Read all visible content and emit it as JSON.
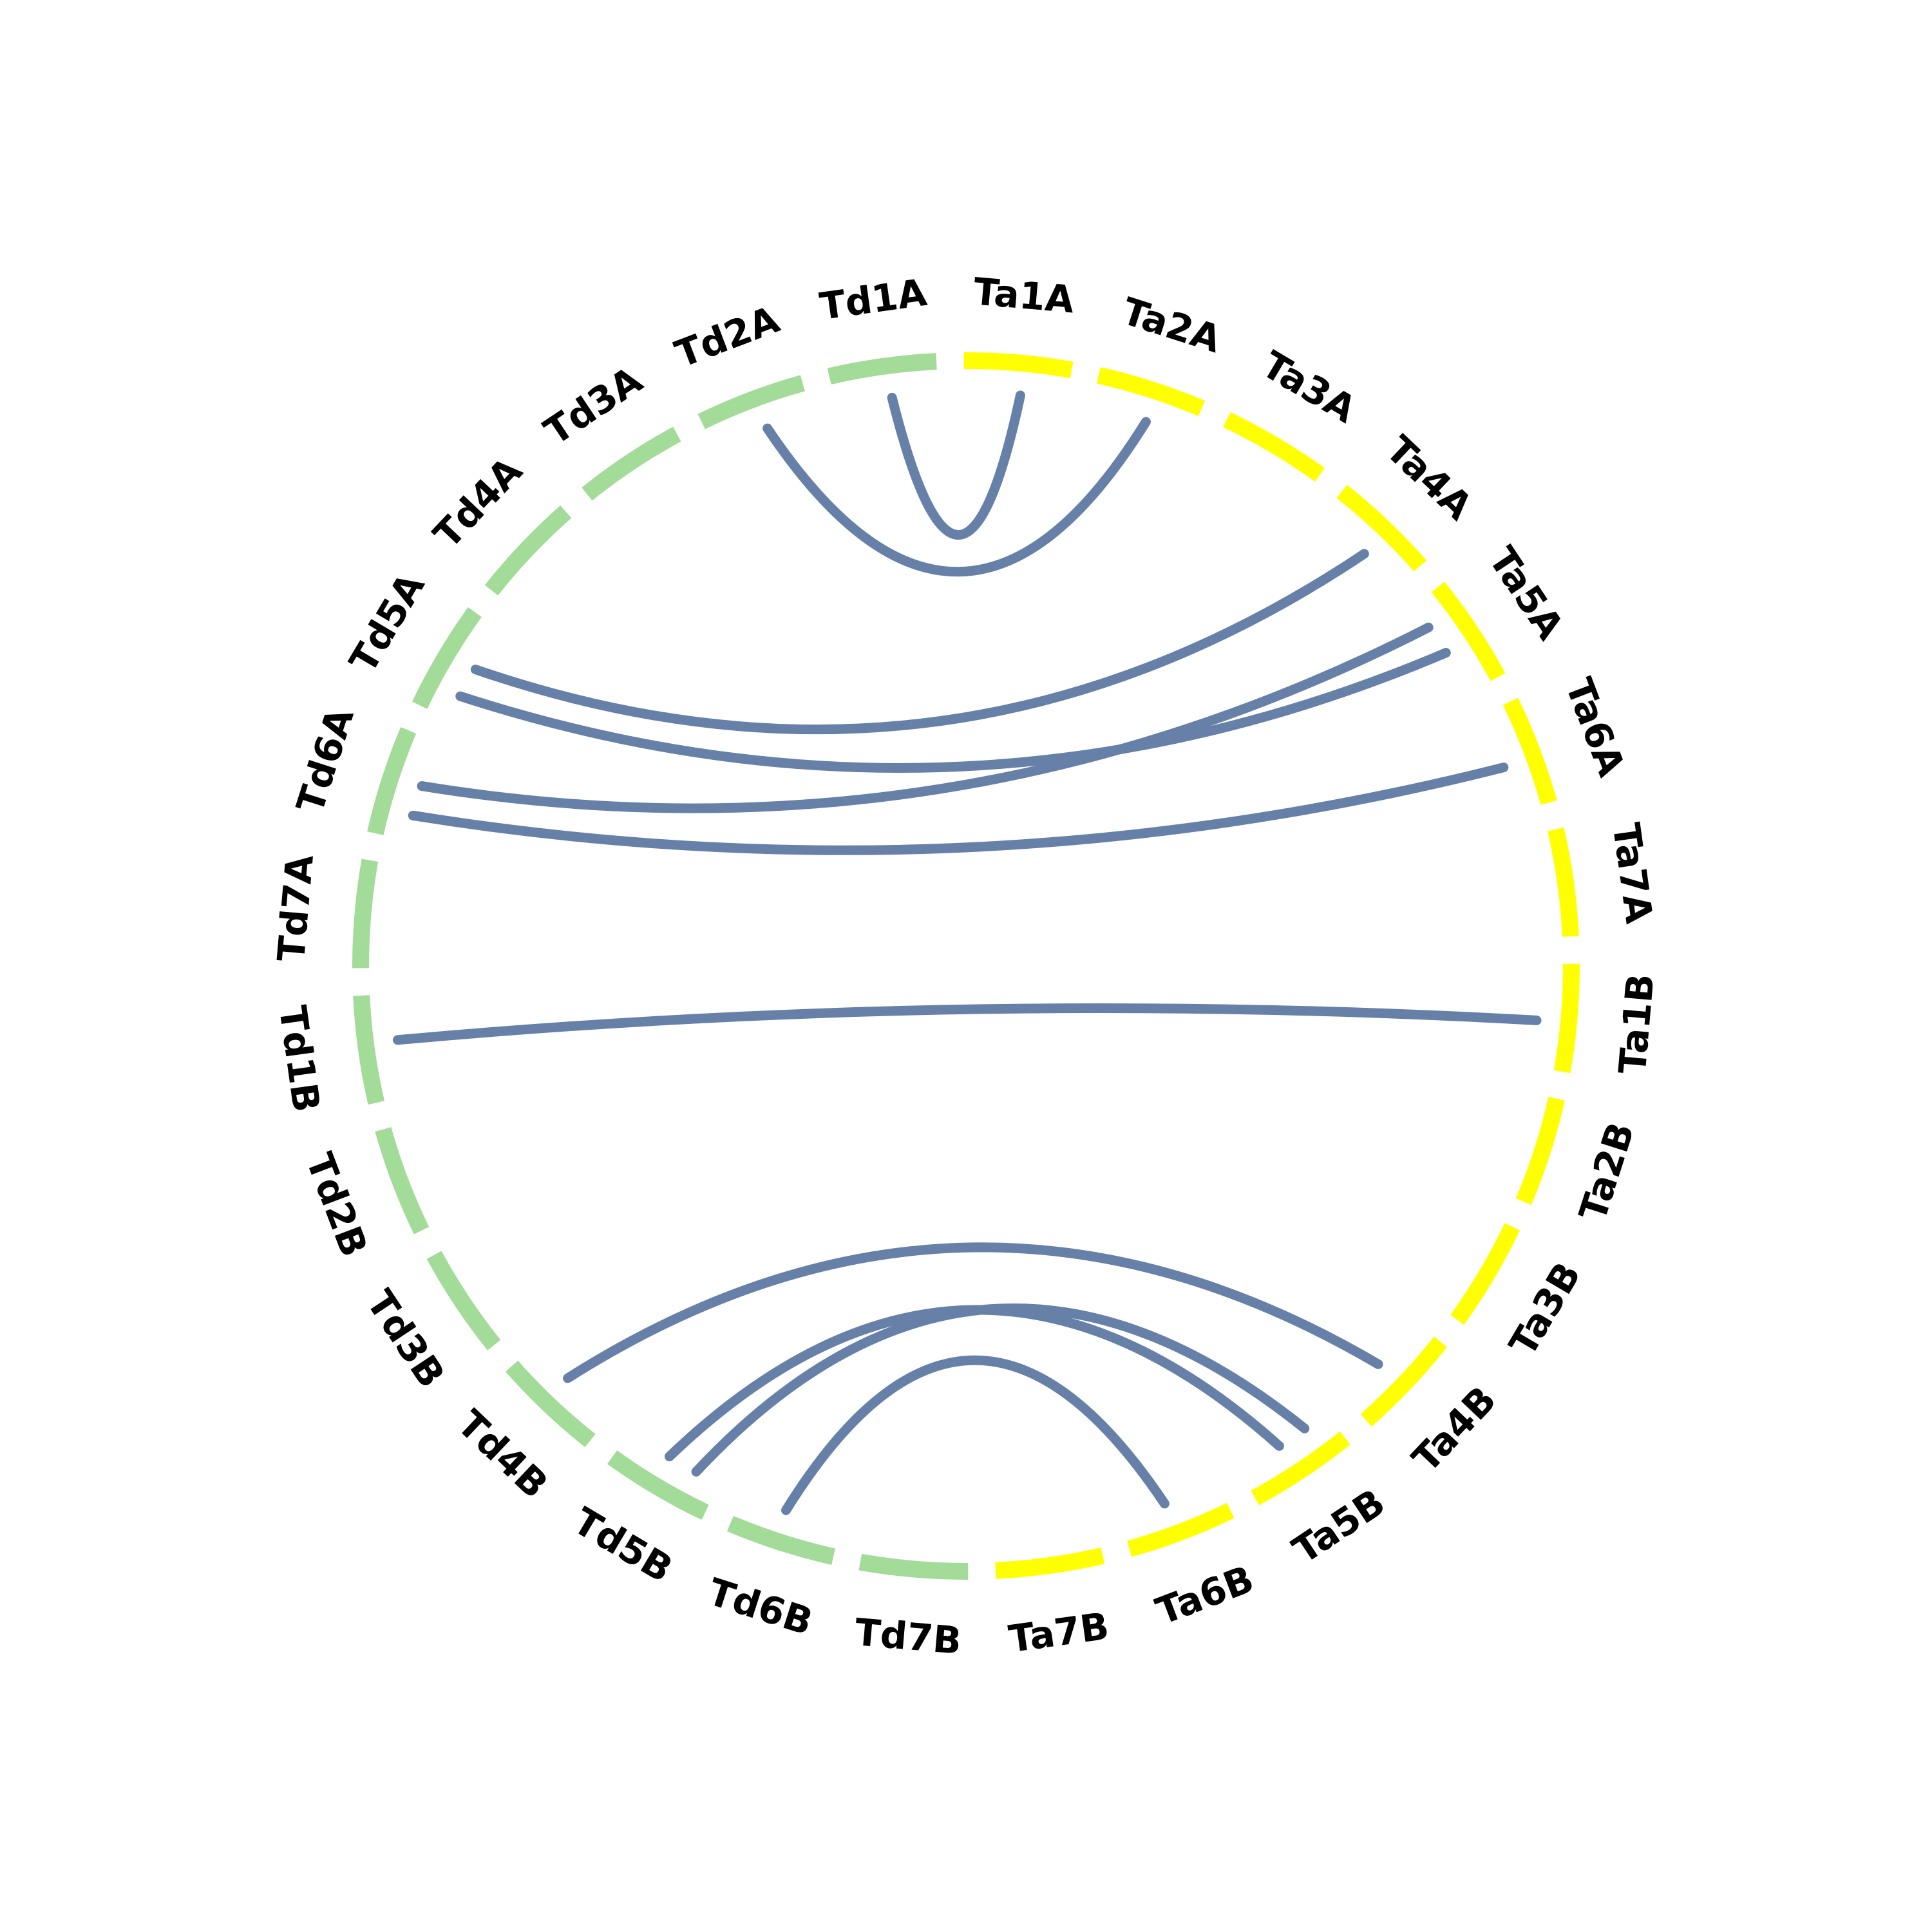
{
  "colors": {
    "group_a": "#a3db98",
    "group_b": "#ffff00",
    "link": "#6680a8",
    "label": "#000000"
  },
  "groups": [
    {
      "color_key": "group_b",
      "chromosomes": [
        "Ta1A",
        "Ta2A",
        "Ta3A",
        "Ta4A",
        "Ta5A",
        "Ta6A",
        "Ta7A",
        "Ta1B",
        "Ta2B",
        "Ta3B",
        "Ta4B",
        "Ta5B",
        "Ta6B",
        "Ta7B"
      ]
    },
    {
      "color_key": "group_a",
      "chromosomes": [
        "Td7B",
        "Td6B",
        "Td5B",
        "Td4B",
        "Td3B",
        "Td2B",
        "Td1B",
        "Td7A",
        "Td6A",
        "Td5A",
        "Td4A",
        "Td3A",
        "Td2A",
        "Td1A"
      ]
    }
  ],
  "links": [
    {
      "from": "Td2A",
      "to": "Ta2A"
    },
    {
      "from": "Td1A",
      "to": "Ta1A"
    },
    {
      "from": "Td5A",
      "to": "Ta4A"
    },
    {
      "from": "Td5A",
      "to": "Ta5A"
    },
    {
      "from": "Td6A",
      "to": "Ta5A"
    },
    {
      "from": "Td6A",
      "to": "Ta6A"
    },
    {
      "from": "Td1B",
      "to": "Ta1B"
    },
    {
      "from": "Td4B",
      "to": "Ta4B"
    },
    {
      "from": "Td5B",
      "to": "Ta5B"
    },
    {
      "from": "Td5B",
      "to": "Ta5B"
    },
    {
      "from": "Td6B",
      "to": "Ta6B"
    }
  ]
}
